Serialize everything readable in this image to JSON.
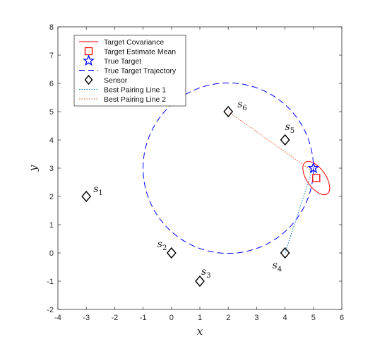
{
  "chart_data": {
    "type": "scatter",
    "xlabel": "x",
    "ylabel": "y",
    "xlim": [
      -4,
      6
    ],
    "ylim": [
      -2,
      8
    ],
    "xticks": [
      -4,
      -3,
      -2,
      -1,
      0,
      1,
      2,
      3,
      4,
      5,
      6
    ],
    "yticks": [
      -2,
      -1,
      0,
      1,
      2,
      3,
      4,
      5,
      6,
      7,
      8
    ],
    "grid": false,
    "legend_position": "top-left",
    "legend": [
      {
        "label": "Target Covariance",
        "style": "solid-line",
        "color": "#ff0000"
      },
      {
        "label": "Target Estimate Mean",
        "style": "square-marker",
        "color": "#ff0000"
      },
      {
        "label": "True Target",
        "style": "pentagram-marker",
        "color": "#0000ff"
      },
      {
        "label": "True Target Trajectory",
        "style": "dashed-line",
        "color": "#0000ff"
      },
      {
        "label": "Sensor",
        "style": "diamond-marker",
        "color": "#000000"
      },
      {
        "label": "Best Pairing Line 1",
        "style": "dotted-line",
        "color": "#0072bd"
      },
      {
        "label": "Best Pairing Line 2",
        "style": "dotted-line",
        "color": "#d95319"
      }
    ],
    "sensors": [
      {
        "name": "s",
        "index": "1",
        "x": -3,
        "y": 2
      },
      {
        "name": "s",
        "index": "2",
        "x": 0,
        "y": 0
      },
      {
        "name": "s",
        "index": "3",
        "x": 1,
        "y": -1
      },
      {
        "name": "s",
        "index": "4",
        "x": 4,
        "y": 0
      },
      {
        "name": "s",
        "index": "5",
        "x": 4,
        "y": 4
      },
      {
        "name": "s",
        "index": "6",
        "x": 2,
        "y": 5
      }
    ],
    "trajectory": {
      "center": [
        2,
        3
      ],
      "radius": 3
    },
    "true_target": {
      "x": 5,
      "y": 3
    },
    "estimate_mean": {
      "x": 5.1,
      "y": 2.65
    },
    "covariance_ellipse": {
      "center": [
        5.1,
        2.65
      ],
      "semi_axes": [
        0.33,
        0.68
      ],
      "rotation_deg": 35
    },
    "pairing_line_1": {
      "from": [
        4,
        0
      ],
      "to": [
        4.95,
        2.9
      ]
    },
    "pairing_line_2": {
      "from": [
        2,
        5
      ],
      "to": [
        4.95,
        2.9
      ]
    }
  }
}
